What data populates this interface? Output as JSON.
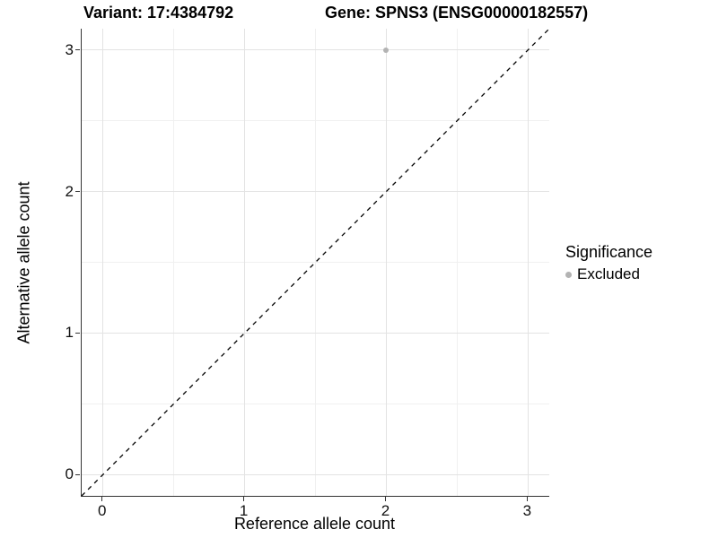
{
  "titles": {
    "variant": "Variant: 17:4384792",
    "gene": "Gene: SPNS3 (ENSG00000182557)"
  },
  "legend": {
    "title": "Significance",
    "items": [
      {
        "label": "Excluded",
        "color": "#b3b3b3"
      }
    ]
  },
  "chart_data": {
    "type": "scatter",
    "title_left": "Variant: 17:4384792",
    "title_right": "Gene: SPNS3 (ENSG00000182557)",
    "xlabel": "Reference allele count",
    "ylabel": "Alternative allele count",
    "xlim": [
      -0.15,
      3.15
    ],
    "ylim": [
      -0.15,
      3.15
    ],
    "xticks": [
      0,
      1,
      2,
      3
    ],
    "yticks": [
      0,
      1,
      2,
      3
    ],
    "x_minor": [
      0.5,
      1.5,
      2.5
    ],
    "y_minor": [
      0.5,
      1.5,
      2.5
    ],
    "grid": "major-and-minor",
    "legend_position": "right",
    "series": [
      {
        "name": "Excluded",
        "color": "#b3b3b3",
        "points": [
          {
            "x": 2,
            "y": 3
          }
        ]
      }
    ],
    "abline": {
      "slope": 1,
      "intercept": 0,
      "style": "dashed",
      "color": "#000000",
      "dash": [
        5,
        5
      ]
    }
  }
}
